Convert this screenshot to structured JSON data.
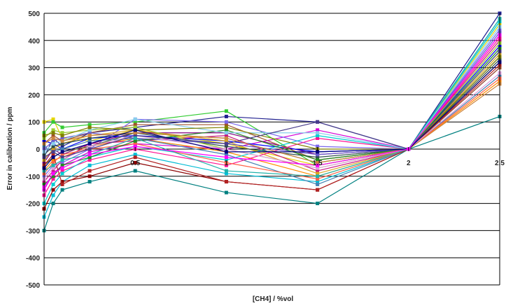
{
  "chart_data": {
    "type": "line",
    "title": "",
    "xlabel": "[CH4] / %vol",
    "ylabel": "Error in calibration / ppm",
    "xlim": [
      0,
      2.5
    ],
    "ylim": [
      -500,
      500
    ],
    "x_ticks": [
      0.5,
      1,
      1.5,
      2,
      2.5
    ],
    "x_tick_labels": [
      "0.5",
      "1",
      "1.5",
      "2",
      "2.5"
    ],
    "y_ticks": [
      500,
      400,
      300,
      200,
      100,
      0,
      -100,
      -200,
      -300,
      -400,
      -500
    ],
    "grid": "horizontal",
    "legend": "none",
    "x": [
      0,
      0.05,
      0.1,
      0.25,
      0.5,
      1,
      1.5,
      2,
      2.5
    ],
    "series": [
      {
        "color": "#1f1f8f",
        "values": [
          -30,
          40,
          10,
          60,
          80,
          120,
          100,
          0,
          500
        ]
      },
      {
        "color": "#d600d6",
        "values": [
          -150,
          -90,
          -60,
          -10,
          20,
          0,
          70,
          0,
          420
        ]
      },
      {
        "color": "#e6d600",
        "values": [
          100,
          110,
          40,
          30,
          70,
          20,
          -60,
          0,
          460
        ]
      },
      {
        "color": "#00bcd4",
        "values": [
          -250,
          -170,
          -120,
          -60,
          -20,
          -90,
          -120,
          0,
          480
        ]
      },
      {
        "color": "#800080",
        "values": [
          -50,
          0,
          -20,
          20,
          60,
          60,
          -20,
          0,
          300
        ]
      },
      {
        "color": "#8b0000",
        "values": [
          -220,
          -150,
          -120,
          -100,
          -50,
          -120,
          -150,
          0,
          320
        ]
      },
      {
        "color": "#008080",
        "values": [
          -300,
          -200,
          -150,
          -120,
          -80,
          -160,
          -200,
          0,
          120
        ]
      },
      {
        "color": "#0000ff",
        "values": [
          30,
          20,
          0,
          40,
          50,
          30,
          -10,
          0,
          380
        ]
      },
      {
        "color": "#33cc33",
        "values": [
          60,
          100,
          80,
          90,
          100,
          140,
          -60,
          0,
          360
        ]
      },
      {
        "color": "#ff8c00",
        "values": [
          -80,
          -40,
          -30,
          10,
          40,
          -10,
          -100,
          0,
          250
        ]
      },
      {
        "color": "#a0522d",
        "values": [
          20,
          50,
          30,
          60,
          90,
          90,
          -40,
          0,
          300
        ]
      },
      {
        "color": "#7b68ee",
        "values": [
          -100,
          -60,
          -50,
          0,
          110,
          100,
          10,
          0,
          440
        ]
      },
      {
        "color": "#c71585",
        "values": [
          -120,
          -80,
          -40,
          20,
          30,
          50,
          -80,
          0,
          400
        ]
      },
      {
        "color": "#556b2f",
        "values": [
          -60,
          -30,
          -10,
          10,
          60,
          40,
          -50,
          0,
          340
        ]
      },
      {
        "color": "#4682b4",
        "values": [
          10,
          -10,
          0,
          30,
          40,
          -20,
          -130,
          0,
          270
        ]
      },
      {
        "color": "#daa520",
        "values": [
          -40,
          0,
          20,
          50,
          70,
          30,
          -90,
          0,
          350
        ]
      },
      {
        "color": "#ff1493",
        "values": [
          -170,
          -110,
          -80,
          -40,
          0,
          -60,
          40,
          0,
          410
        ]
      },
      {
        "color": "#00ced1",
        "values": [
          -200,
          -130,
          -90,
          -30,
          10,
          -40,
          50,
          0,
          470
        ]
      },
      {
        "color": "#2f4f4f",
        "values": [
          -20,
          10,
          20,
          40,
          60,
          10,
          -30,
          0,
          330
        ]
      },
      {
        "color": "#9acd32",
        "values": [
          40,
          70,
          60,
          70,
          80,
          0,
          -70,
          0,
          390
        ]
      },
      {
        "color": "#ff6347",
        "values": [
          -90,
          -50,
          -20,
          0,
          20,
          -50,
          -110,
          0,
          260
        ]
      },
      {
        "color": "#6a5acd",
        "values": [
          0,
          30,
          40,
          60,
          40,
          20,
          -20,
          0,
          430
        ]
      },
      {
        "color": "#228b22",
        "values": [
          -130,
          -100,
          -60,
          -30,
          30,
          70,
          -40,
          0,
          370
        ]
      },
      {
        "color": "#b22222",
        "values": [
          -60,
          -20,
          -130,
          -80,
          -30,
          -120,
          -150,
          0,
          310
        ]
      },
      {
        "color": "#87ceeb",
        "values": [
          -10,
          20,
          30,
          70,
          110,
          60,
          60,
          0,
          450
        ]
      },
      {
        "color": "#dda0dd",
        "values": [
          -110,
          -70,
          -40,
          10,
          50,
          0,
          -70,
          0,
          280
        ]
      },
      {
        "color": "#808000",
        "values": [
          50,
          60,
          50,
          80,
          70,
          80,
          0,
          0,
          340
        ]
      },
      {
        "color": "#483d8b",
        "values": [
          -30,
          -10,
          -30,
          0,
          50,
          20,
          100,
          0,
          360
        ]
      },
      {
        "color": "#20b2aa",
        "values": [
          -80,
          -60,
          -40,
          -20,
          40,
          -80,
          -100,
          0,
          480
        ]
      },
      {
        "color": "#cd853f",
        "values": [
          20,
          40,
          30,
          50,
          60,
          40,
          -50,
          0,
          240
        ]
      },
      {
        "color": "#000080",
        "values": [
          -70,
          -30,
          -10,
          20,
          70,
          -10,
          -10,
          0,
          320
        ]
      },
      {
        "color": "#ff00ff",
        "values": [
          -140,
          -90,
          -70,
          -20,
          10,
          -30,
          -60,
          0,
          420
        ]
      }
    ]
  }
}
